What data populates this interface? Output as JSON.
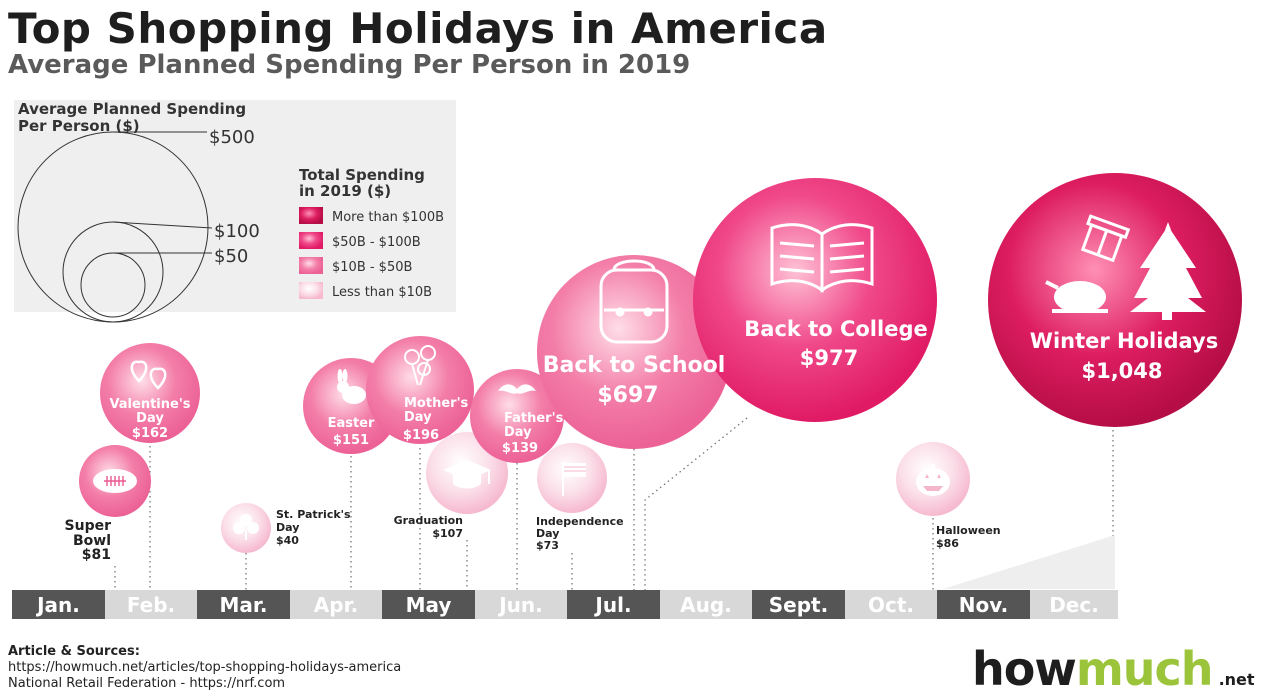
{
  "header": {
    "title": "Top Shopping Holidays in America",
    "subtitle": "Average Planned Spending Per Person in 2019"
  },
  "legend": {
    "size_title_line1": "Average Planned Spending",
    "size_title_line2": "Per Person ($)",
    "size_values": [
      "$500",
      "$100",
      "$50"
    ],
    "color_title_line1": "Total Spending",
    "color_title_line2": "in 2019 ($)",
    "color_items": [
      {
        "label": "More than $100B",
        "color": "#c8124f"
      },
      {
        "label": "$50B - $100B",
        "color": "#e6206a"
      },
      {
        "label": "$10B - $50B",
        "color": "#f07aa4"
      },
      {
        "label": "Less than $10B",
        "color": "#fbd0de"
      }
    ]
  },
  "months": [
    "Jan.",
    "Feb.",
    "Mar.",
    "Apr.",
    "May",
    "Jun.",
    "Jul.",
    "Aug.",
    "Sept.",
    "Oct.",
    "Nov.",
    "Dec."
  ],
  "sources": {
    "heading": "Article & Sources:",
    "line1": "https://howmuch.net/articles/top-shopping-holidays-america",
    "line2": "National Retail Federation - https://nrf.com"
  },
  "logo": {
    "how": "how",
    "much": "much",
    "net": ".net"
  },
  "chart_data": {
    "type": "bubble",
    "title": "Top Shopping Holidays in America",
    "subtitle": "Average Planned Spending Per Person in 2019",
    "x_axis": "month",
    "series": [
      {
        "label": "Super Bowl",
        "value_label": "$81",
        "value": 81,
        "tier": "$10B - $50B",
        "icon": "football-icon"
      },
      {
        "label": "Valentine's Day",
        "value_label": "$162",
        "value": 162,
        "tier": "$10B - $50B",
        "icon": "hearts-icon"
      },
      {
        "label": "St. Patrick's Day",
        "value_label": "$40",
        "value": 40,
        "tier": "Less than $10B",
        "icon": "shamrock-icon"
      },
      {
        "label": "Easter",
        "value_label": "$151",
        "value": 151,
        "tier": "$10B - $50B",
        "icon": "rabbit-icon"
      },
      {
        "label": "Mother's Day",
        "value_label": "$196",
        "value": 196,
        "tier": "$10B - $50B",
        "icon": "flowers-icon"
      },
      {
        "label": "Graduation",
        "value_label": "$107",
        "value": 107,
        "tier": "Less than $10B",
        "icon": "graduation-cap-icon"
      },
      {
        "label": "Father's Day",
        "value_label": "$139",
        "value": 139,
        "tier": "$10B - $50B",
        "icon": "mustache-icon"
      },
      {
        "label": "Independence Day",
        "value_label": "$73",
        "value": 73,
        "tier": "Less than $10B",
        "icon": "flag-icon"
      },
      {
        "label": "Back to School",
        "value_label": "$697",
        "value": 697,
        "tier": "$10B - $50B",
        "icon": "backpack-icon"
      },
      {
        "label": "Back to College",
        "value_label": "$977",
        "value": 977,
        "tier": "$50B - $100B",
        "icon": "book-icon"
      },
      {
        "label": "Halloween",
        "value_label": "$86",
        "value": 86,
        "tier": "Less than $10B",
        "icon": "pumpkin-icon"
      },
      {
        "label": "Winter Holidays",
        "value_label": "$1,048",
        "value": 1048,
        "tier": "More than $100B",
        "icon": "tree-turkey-gift-icon"
      }
    ]
  }
}
